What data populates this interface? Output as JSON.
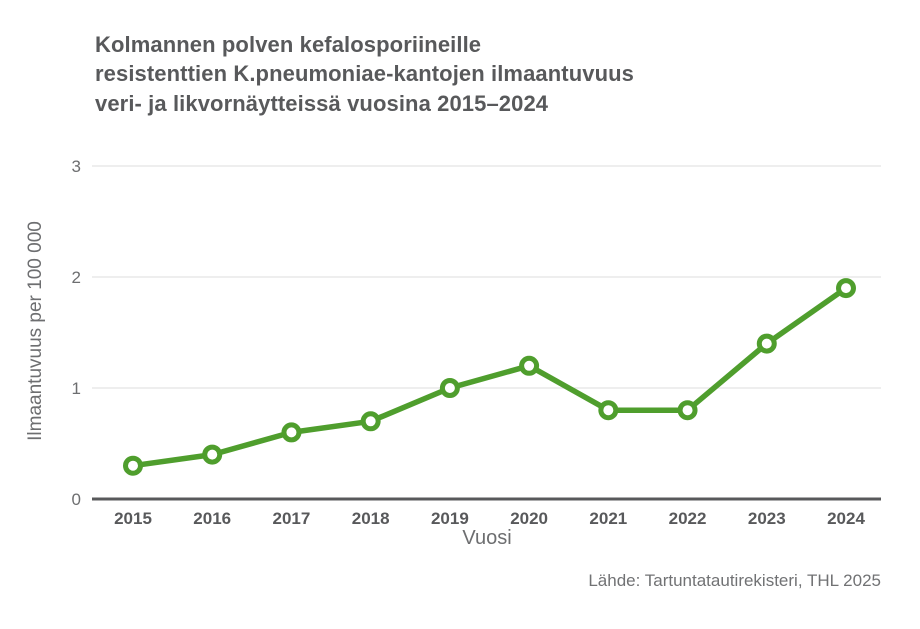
{
  "title": "Kolmannen polven kefalosporiineille\nresistenttien K.pneumoniae-kantojen ilmaantuvuus\nveri- ja likvornäytteissä vuosina 2015–2024",
  "source": "Lähde: Tartuntatautirekisteri, THL 2025",
  "colors": {
    "line": "#4f9e2d",
    "marker_fill": "#ffffff",
    "grid": "#e4e4e4",
    "axis": "#58595b",
    "x_tick_text": "#58595b",
    "y_tick_text": "#6d6e70"
  },
  "chart_data": {
    "type": "line",
    "x": [
      2015,
      2016,
      2017,
      2018,
      2019,
      2020,
      2021,
      2022,
      2023,
      2024
    ],
    "values": [
      0.3,
      0.4,
      0.6,
      0.7,
      1.0,
      1.2,
      0.8,
      0.8,
      1.4,
      1.9
    ],
    "series_name": "Ilmaantuvuus",
    "title": "Kolmannen polven kefalosporiineille resistenttien K.pneumoniae-kantojen ilmaantuvuus veri- ja likvornäytteissä vuosina 2015–2024",
    "xlabel": "Vuosi",
    "ylabel": "Ilmaantuvuus per 100 000",
    "ylim": [
      0,
      3
    ],
    "yticks": [
      0,
      1,
      2,
      3
    ],
    "grid": "horizontal",
    "legend": "none"
  }
}
